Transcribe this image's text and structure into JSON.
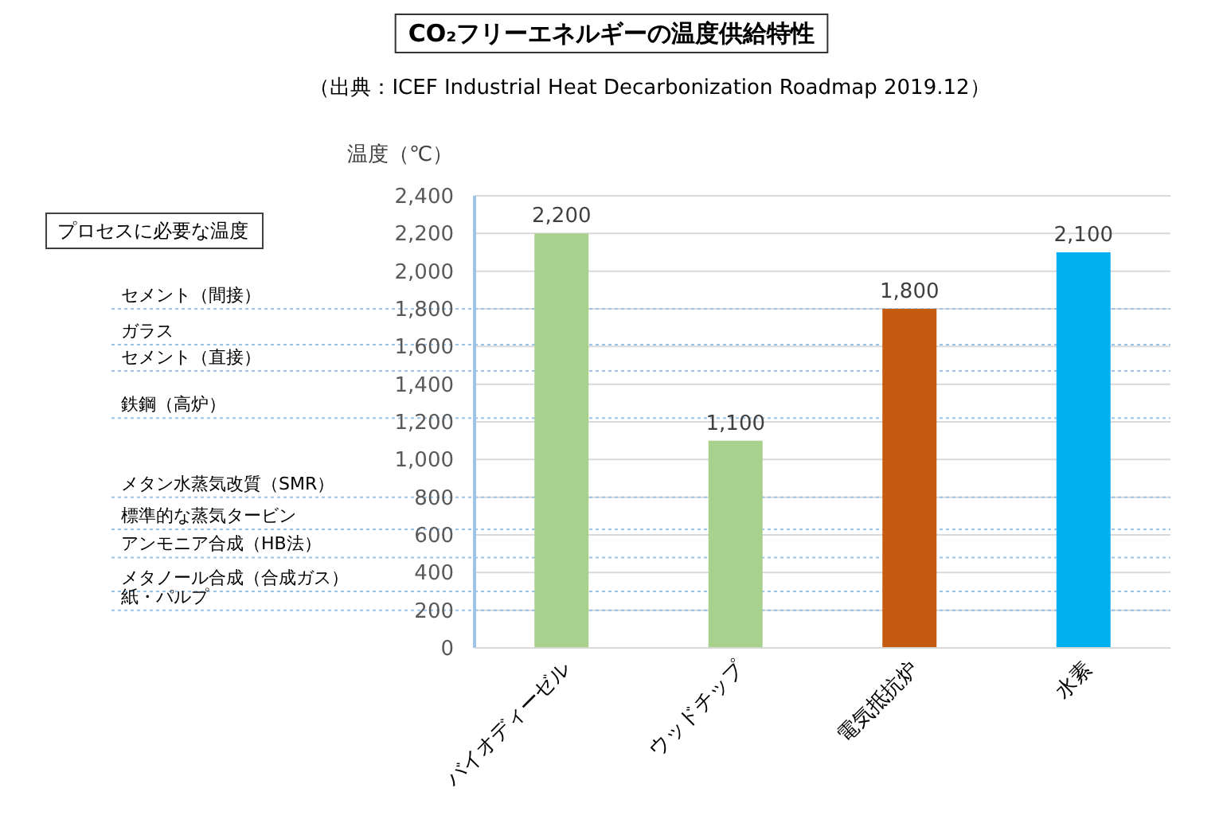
{
  "chart_data": {
    "type": "bar",
    "title": "CO₂フリーエネルギーの温度供給特性",
    "subtitle": "（出典：ICEF Industrial Heat Decarbonization Roadmap 2019.12）",
    "ylabel": "温度（℃）",
    "categories": [
      "バイオディーゼル",
      "ウッドチップ",
      "電気抵抗炉",
      "水素"
    ],
    "values": [
      2200,
      1100,
      1800,
      2100
    ],
    "colors": [
      "#a9d18e",
      "#a9d18e",
      "#c55a11",
      "#00b0f0"
    ],
    "ylim": [
      0,
      2400
    ],
    "yticks": [
      {
        "value": 0,
        "label": "0"
      },
      {
        "value": 200,
        "label": "200"
      },
      {
        "value": 400,
        "label": "400"
      },
      {
        "value": 600,
        "label": "600"
      },
      {
        "value": 800,
        "label": "800"
      },
      {
        "value": 1000,
        "label": "1,000"
      },
      {
        "value": 1200,
        "label": "1,200"
      },
      {
        "value": 1400,
        "label": "1,400"
      },
      {
        "value": 1600,
        "label": "1,600"
      },
      {
        "value": 1800,
        "label": "1,800"
      },
      {
        "value": 2000,
        "label": "2,000"
      },
      {
        "value": 2200,
        "label": "2,200"
      },
      {
        "value": 2400,
        "label": "2,400"
      }
    ],
    "grid": "y",
    "value_labels": [
      "2,200",
      "1,100",
      "1,800",
      "2,100"
    ],
    "annotations": [
      "プロセスに必要な温度"
    ],
    "ref_lines": [
      {
        "axis": "y",
        "value": 1800,
        "label": "セメント（間接）",
        "color": "#9dc3e6",
        "line_style": "dotted"
      },
      {
        "axis": "y",
        "value": 1610,
        "label": "ガラス",
        "color": "#9dc3e6",
        "line_style": "dotted"
      },
      {
        "axis": "y",
        "value": 1470,
        "label": "セメント（直接）",
        "color": "#9dc3e6",
        "line_style": "dotted"
      },
      {
        "axis": "y",
        "value": 1220,
        "label": "鉄鋼（高炉）",
        "color": "#9dc3e6",
        "line_style": "dotted"
      },
      {
        "axis": "y",
        "value": 800,
        "label": "メタン水蒸気改質（SMR）",
        "color": "#9dc3e6",
        "line_style": "dotted"
      },
      {
        "axis": "y",
        "value": 630,
        "label": "標準的な蒸気タービン",
        "color": "#9dc3e6",
        "line_style": "dotted"
      },
      {
        "axis": "y",
        "value": 480,
        "label": "アンモニア合成（HB法）",
        "color": "#9dc3e6",
        "line_style": "dotted"
      },
      {
        "axis": "y",
        "value": 300,
        "label": "メタノール合成（合成ガス）",
        "color": "#9dc3e6",
        "line_style": "dotted"
      },
      {
        "axis": "y",
        "value": 200,
        "label": "紙・パルプ",
        "color": "#9dc3e6",
        "line_style": "dotted"
      }
    ]
  }
}
